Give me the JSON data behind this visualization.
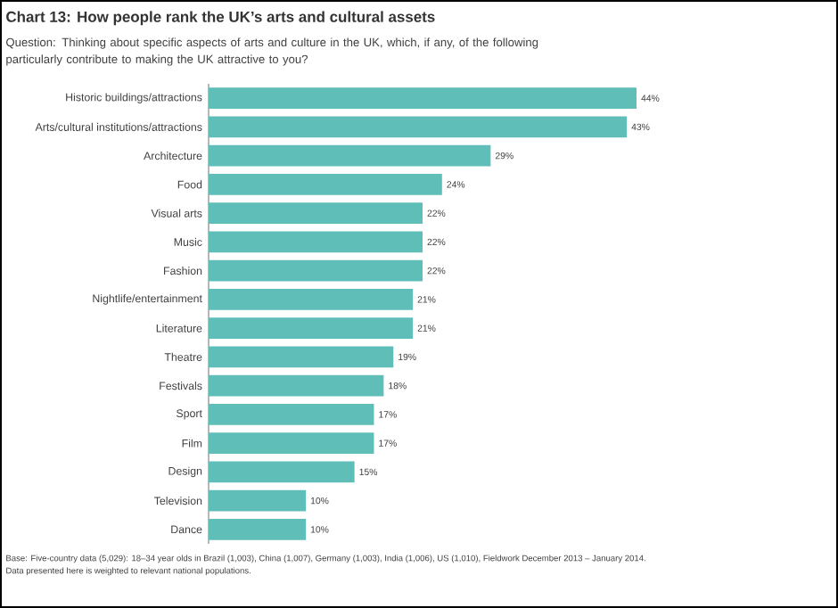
{
  "chart_data": {
    "type": "bar",
    "orientation": "horizontal",
    "title": "Chart 13: How people rank the UK’s arts and cultural assets",
    "subtitle": "Question: Thinking about specific aspects of arts and culture in the UK, which, if any, of the following particularly contribute to making the UK attractive to you?",
    "categories": [
      "Historic buildings/attractions",
      "Arts/cultural institutions/attractions",
      "Architecture",
      "Food",
      "Visual arts",
      "Music",
      "Fashion",
      "Nightlife/entertainment",
      "Literature",
      "Theatre",
      "Festivals",
      "Sport",
      "Film",
      "Design",
      "Television",
      "Dance"
    ],
    "values": [
      44,
      43,
      29,
      24,
      22,
      22,
      22,
      21,
      21,
      19,
      18,
      17,
      17,
      15,
      10,
      10
    ],
    "value_labels": [
      "44%",
      "43%",
      "29%",
      "24%",
      "22%",
      "22%",
      "22%",
      "21%",
      "21%",
      "19%",
      "18%",
      "17%",
      "17%",
      "15%",
      "10%",
      "10%"
    ],
    "color": "#5fbfb8",
    "annotations": [
      "Base: Five-country data (5,029): 18–34 year olds in Brazil (1,003), China (1,007), Germany (1,003), India (1,006), US (1,010), Fieldwork December 2013 – January 2014.",
      "Data presented here is weighted to relevant national populations."
    ]
  }
}
